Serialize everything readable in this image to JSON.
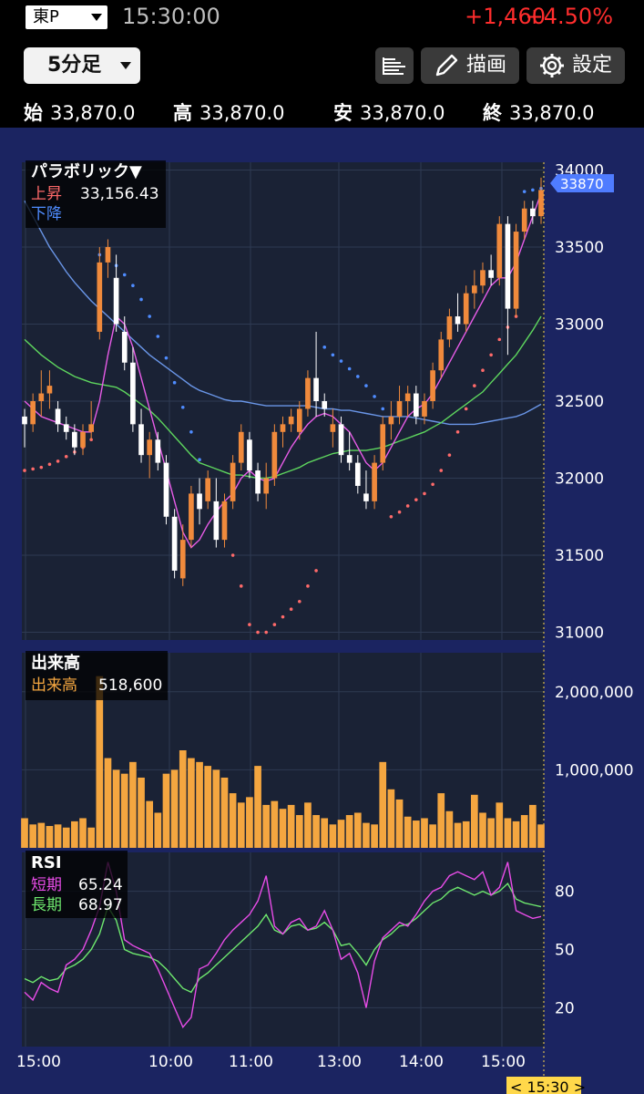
{
  "header": {
    "market": "東P",
    "time": "15:30:00",
    "change": "+1,460",
    "change_pct": "+4.50%"
  },
  "toolbar": {
    "interval": "5分足",
    "draw_label": "描画",
    "settings_label": "設定"
  },
  "ohlc": [
    {
      "label": "始",
      "value": "33,870.0"
    },
    {
      "label": "高",
      "value": "33,870.0"
    },
    {
      "label": "安",
      "value": "33,870.0"
    },
    {
      "label": "終",
      "value": "33,870.0"
    }
  ],
  "price_panel": {
    "indicator_name": "パラボリック▼",
    "up_label": "上昇",
    "up_value": "33,156.43",
    "down_label": "下降",
    "y_ticks": [
      "34000",
      "33500",
      "33000",
      "32500",
      "32000",
      "31500",
      "31000"
    ],
    "current_price_tag": "33870"
  },
  "volume_panel": {
    "title": "出来高",
    "label": "出来高",
    "value": "518,600",
    "y_ticks": [
      "2,000,000",
      "1,000,000"
    ]
  },
  "rsi_panel": {
    "title": "RSI",
    "short_label": "短期",
    "short_value": "65.24",
    "long_label": "長期",
    "long_value": "68.97",
    "y_ticks": [
      "80",
      "50",
      "20"
    ]
  },
  "x_axis": {
    "ticks": [
      "15:00",
      "10:00",
      "11:00",
      "13:00",
      "14:00",
      "15:00"
    ],
    "cursor_label": "< 15:30 >"
  },
  "colors": {
    "up_candle": "#f08a3c",
    "down_candle": "#ffffff",
    "volume": "#f4a640",
    "sar_up": "#ff6a6a",
    "sar_down": "#4f8cff",
    "ma_long": "#6a96e8",
    "ma_mid": "#5ed65e",
    "ma_short": "#e85ce8",
    "rsi_short": "#e84ce8",
    "rsi_long": "#6ee86e"
  },
  "chart_data": {
    "type": "candlestick",
    "bar_interval": "5分足",
    "y_range_price": [
      30950,
      34050
    ],
    "y_range_volume": [
      0,
      2500000
    ],
    "y_range_rsi": [
      0,
      100
    ],
    "candles": [
      [
        32400,
        32450,
        32200,
        32350
      ],
      [
        32350,
        32550,
        32300,
        32500
      ],
      [
        32500,
        32700,
        32400,
        32550
      ],
      [
        32550,
        32700,
        32450,
        32600
      ],
      [
        32450,
        32500,
        32300,
        32350
      ],
      [
        32350,
        32400,
        32250,
        32300
      ],
      [
        32300,
        32350,
        32150,
        32200
      ],
      [
        32200,
        32350,
        32150,
        32300
      ],
      [
        32300,
        32500,
        32250,
        32350
      ],
      [
        32950,
        33500,
        32900,
        33400
      ],
      [
        33400,
        33550,
        33300,
        33500
      ],
      [
        33300,
        33450,
        32950,
        33000
      ],
      [
        32950,
        33050,
        32700,
        32750
      ],
      [
        32750,
        32850,
        32300,
        32350
      ],
      [
        32350,
        32450,
        32100,
        32150
      ],
      [
        32150,
        32300,
        32000,
        32250
      ],
      [
        32250,
        32300,
        32050,
        32100
      ],
      [
        32100,
        32150,
        31700,
        31750
      ],
      [
        31750,
        31800,
        31350,
        31400
      ],
      [
        31350,
        31700,
        31300,
        31600
      ],
      [
        31600,
        31950,
        31550,
        31900
      ],
      [
        31900,
        32000,
        31700,
        31800
      ],
      [
        31850,
        32050,
        31800,
        32000
      ],
      [
        31850,
        32000,
        31550,
        31600
      ],
      [
        31600,
        31900,
        31550,
        31850
      ],
      [
        31850,
        32150,
        31800,
        32100
      ],
      [
        32100,
        32350,
        32050,
        32300
      ],
      [
        32250,
        32300,
        32000,
        32050
      ],
      [
        32050,
        32100,
        31850,
        31900
      ],
      [
        31900,
        32100,
        31800,
        32000
      ],
      [
        32000,
        32350,
        31950,
        32300
      ],
      [
        32300,
        32400,
        32200,
        32350
      ],
      [
        32350,
        32450,
        32300,
        32400
      ],
      [
        32300,
        32500,
        32250,
        32450
      ],
      [
        32450,
        32700,
        32400,
        32650
      ],
      [
        32650,
        32950,
        32400,
        32500
      ],
      [
        32500,
        32550,
        32400,
        32450
      ],
      [
        32300,
        32450,
        32200,
        32350
      ],
      [
        32350,
        32400,
        32100,
        32150
      ],
      [
        32150,
        32300,
        32050,
        32100
      ],
      [
        32100,
        32150,
        31900,
        31950
      ],
      [
        31900,
        32050,
        31800,
        31850
      ],
      [
        31850,
        32150,
        31800,
        32100
      ],
      [
        32100,
        32400,
        32050,
        32350
      ],
      [
        32350,
        32500,
        32250,
        32400
      ],
      [
        32400,
        32600,
        32350,
        32500
      ],
      [
        32500,
        32600,
        32400,
        32550
      ],
      [
        32550,
        32600,
        32350,
        32400
      ],
      [
        32400,
        32550,
        32350,
        32500
      ],
      [
        32500,
        32750,
        32450,
        32700
      ],
      [
        32700,
        32950,
        32650,
        32900
      ],
      [
        32900,
        33100,
        32850,
        33050
      ],
      [
        33050,
        33200,
        32950,
        33000
      ],
      [
        33000,
        33250,
        32950,
        33200
      ],
      [
        33200,
        33350,
        33100,
        33250
      ],
      [
        33250,
        33400,
        33200,
        33350
      ],
      [
        33350,
        33450,
        33250,
        33300
      ],
      [
        33300,
        33700,
        33250,
        33650
      ],
      [
        33650,
        33700,
        32800,
        33100
      ],
      [
        33100,
        33650,
        33050,
        33600
      ],
      [
        33600,
        33800,
        33550,
        33750
      ],
      [
        33750,
        33800,
        33650,
        33700
      ],
      [
        33700,
        33950,
        33650,
        33870
      ]
    ],
    "volume": [
      380000,
      300000,
      320000,
      280000,
      300000,
      260000,
      340000,
      380000,
      260000,
      2200000,
      1150000,
      1000000,
      950000,
      1100000,
      900000,
      600000,
      450000,
      950000,
      1000000,
      1250000,
      1150000,
      1100000,
      1050000,
      1000000,
      900000,
      700000,
      580000,
      650000,
      1050000,
      550000,
      600000,
      500000,
      550000,
      420000,
      580000,
      420000,
      380000,
      300000,
      360000,
      420000,
      450000,
      320000,
      300000,
      1100000,
      750000,
      620000,
      400000,
      350000,
      380000,
      300000,
      700000,
      470000,
      320000,
      340000,
      680000,
      450000,
      380000,
      580000,
      380000,
      340000,
      420000,
      550000,
      300000
    ],
    "rsi_short": [
      28,
      24,
      33,
      30,
      28,
      42,
      45,
      50,
      60,
      72,
      95,
      80,
      55,
      52,
      50,
      48,
      40,
      30,
      20,
      10,
      15,
      40,
      42,
      48,
      55,
      60,
      64,
      68,
      75,
      88,
      62,
      58,
      64,
      66,
      60,
      62,
      70,
      60,
      45,
      48,
      38,
      20,
      44,
      56,
      60,
      64,
      62,
      68,
      75,
      80,
      82,
      88,
      90,
      88,
      86,
      90,
      78,
      82,
      95,
      70,
      68,
      66,
      67
    ],
    "rsi_long": [
      35,
      33,
      36,
      34,
      35,
      40,
      42,
      45,
      50,
      58,
      72,
      65,
      50,
      48,
      47,
      46,
      44,
      40,
      35,
      30,
      28,
      35,
      38,
      42,
      46,
      50,
      54,
      58,
      62,
      68,
      60,
      58,
      62,
      63,
      60,
      61,
      64,
      60,
      52,
      53,
      48,
      42,
      50,
      55,
      58,
      62,
      63,
      66,
      70,
      74,
      76,
      80,
      82,
      80,
      78,
      80,
      78,
      80,
      84,
      76,
      74,
      73,
      72
    ],
    "parabolic_sar": [
      32050,
      32060,
      32070,
      32090,
      32110,
      32140,
      32170,
      32200,
      32250,
      33450,
      33430,
      33380,
      33320,
      33250,
      33160,
      33050,
      32920,
      32780,
      32620,
      32460,
      32300,
      32120,
      31950,
      31800,
      31650,
      31500,
      31300,
      31050,
      31000,
      31000,
      31050,
      31100,
      31150,
      31200,
      31300,
      31400,
      32850,
      32800,
      32760,
      32710,
      32660,
      32600,
      32530,
      32450,
      31750,
      31780,
      31820,
      31860,
      31900,
      31960,
      32050,
      32150,
      32300,
      32450,
      32600,
      32700,
      32800,
      32900,
      32980,
      33050,
      33860,
      33870,
      33880
    ],
    "ma_long": [
      33800,
      33700,
      33600,
      33500,
      33420,
      33340,
      33270,
      33210,
      33150,
      33100,
      33050,
      33000,
      32950,
      32900,
      32850,
      32800,
      32760,
      32720,
      32680,
      32640,
      32600,
      32570,
      32550,
      32530,
      32510,
      32500,
      32500,
      32490,
      32480,
      32470,
      32470,
      32470,
      32470,
      32470,
      32470,
      32460,
      32450,
      32450,
      32440,
      32440,
      32430,
      32420,
      32410,
      32400,
      32400,
      32400,
      32400,
      32390,
      32380,
      32370,
      32360,
      32350,
      32350,
      32350,
      32350,
      32360,
      32370,
      32380,
      32390,
      32400,
      32420,
      32450,
      32480
    ],
    "ma_mid": [
      32900,
      32850,
      32800,
      32760,
      32720,
      32690,
      32660,
      32640,
      32620,
      32610,
      32600,
      32590,
      32560,
      32520,
      32480,
      32440,
      32390,
      32330,
      32270,
      32210,
      32150,
      32100,
      32080,
      32060,
      32040,
      32020,
      32020,
      32010,
      32000,
      32000,
      32010,
      32030,
      32050,
      32070,
      32100,
      32120,
      32140,
      32160,
      32170,
      32180,
      32180,
      32180,
      32190,
      32200,
      32220,
      32240,
      32260,
      32280,
      32300,
      32330,
      32360,
      32400,
      32440,
      32480,
      32520,
      32560,
      32620,
      32680,
      32740,
      32800,
      32880,
      32960,
      33050
    ],
    "ma_short": [
      32500,
      32450,
      32400,
      32380,
      32360,
      32340,
      32320,
      32300,
      32300,
      32500,
      32800,
      33050,
      33000,
      32850,
      32650,
      32450,
      32250,
      32050,
      31850,
      31650,
      31550,
      31600,
      31700,
      31780,
      31850,
      31900,
      32000,
      32050,
      32000,
      31980,
      32000,
      32100,
      32200,
      32280,
      32350,
      32400,
      32420,
      32400,
      32350,
      32300,
      32200,
      32100,
      32050,
      32100,
      32200,
      32300,
      32400,
      32450,
      32480,
      32550,
      32650,
      32750,
      32850,
      32950,
      33050,
      33150,
      33250,
      33300,
      33300,
      33400,
      33550,
      33700,
      33850
    ]
  }
}
